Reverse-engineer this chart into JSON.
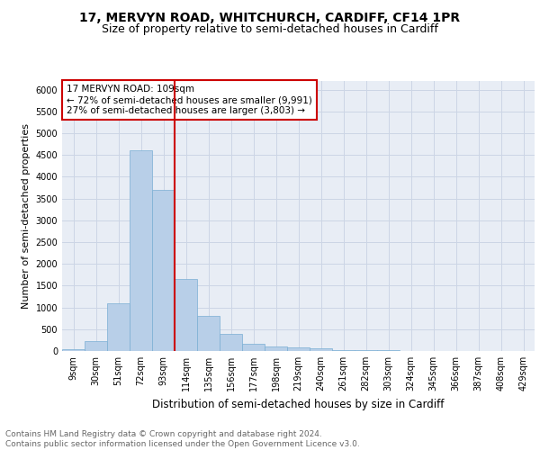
{
  "title1": "17, MERVYN ROAD, WHITCHURCH, CARDIFF, CF14 1PR",
  "title2": "Size of property relative to semi-detached houses in Cardiff",
  "xlabel": "Distribution of semi-detached houses by size in Cardiff",
  "ylabel": "Number of semi-detached properties",
  "categories": [
    "9sqm",
    "30sqm",
    "51sqm",
    "72sqm",
    "93sqm",
    "114sqm",
    "135sqm",
    "156sqm",
    "177sqm",
    "198sqm",
    "219sqm",
    "240sqm",
    "261sqm",
    "282sqm",
    "303sqm",
    "324sqm",
    "345sqm",
    "366sqm",
    "387sqm",
    "408sqm",
    "429sqm"
  ],
  "values": [
    50,
    225,
    1100,
    4600,
    3700,
    1650,
    800,
    390,
    175,
    100,
    80,
    60,
    30,
    20,
    15,
    10,
    5,
    5,
    5,
    5,
    5
  ],
  "bar_color": "#b8cfe8",
  "bar_edge_color": "#7aafd4",
  "red_line_index": 5,
  "red_line_color": "#cc0000",
  "annotation_text": "17 MERVYN ROAD: 109sqm\n← 72% of semi-detached houses are smaller (9,991)\n27% of semi-detached houses are larger (3,803) →",
  "annotation_box_color": "#ffffff",
  "annotation_box_edge_color": "#cc0000",
  "ylim": [
    0,
    6200
  ],
  "yticks": [
    0,
    500,
    1000,
    1500,
    2000,
    2500,
    3000,
    3500,
    4000,
    4500,
    5000,
    5500,
    6000
  ],
  "grid_color": "#ccd5e5",
  "background_color": "#e8edf5",
  "footer_text": "Contains HM Land Registry data © Crown copyright and database right 2024.\nContains public sector information licensed under the Open Government Licence v3.0.",
  "title1_fontsize": 10,
  "title2_fontsize": 9,
  "xlabel_fontsize": 8.5,
  "ylabel_fontsize": 8,
  "tick_fontsize": 7,
  "annotation_fontsize": 7.5,
  "footer_fontsize": 6.5
}
